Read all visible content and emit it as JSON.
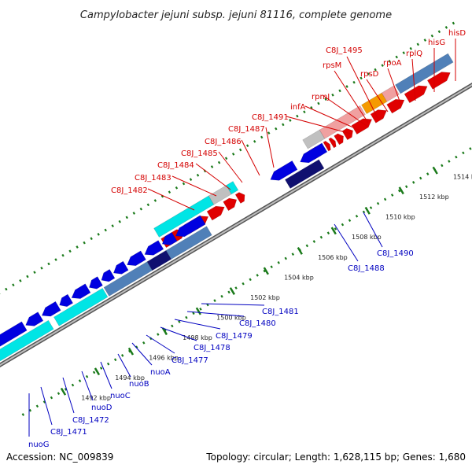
{
  "title": "Campylobacter jejuni subsp. jejuni 81116, complete genome",
  "footer": {
    "accession": "Accession: NC_009839",
    "summary": "Topology: circular; Length: 1,628,115 bp; Genes: 1,680"
  },
  "colors": {
    "forward_cds": "#e00000",
    "reverse_cds": "#0000e0",
    "forward_feature": "#00e5e5",
    "reverse_feature": "#5080b8",
    "pseudo_pale": "#f0a0a0",
    "grey_feature": "#c0c0c0",
    "orange_feature": "#f59a00",
    "dark_navy": "#101070",
    "tick_green": "#1a7a1a",
    "axis_grey": "#8c8c8c"
  },
  "ticks": [
    "1492 kbp",
    "1494 kbp",
    "1496 kbp",
    "1498 kbp",
    "1500 kbp",
    "1502 kbp",
    "1504 kbp",
    "1506 kbp",
    "1508 kbp",
    "1510 kbp",
    "1512 kbp",
    "1514 kbp"
  ],
  "forward_labels": [
    "C8J_1482",
    "C8J_1483",
    "C8J_1484",
    "C8J_1485",
    "C8J_1486",
    "C8J_1487",
    "C8J_1491",
    "infA",
    "rpmJ",
    "rpsM",
    "C8J_1495",
    "rpsD",
    "rpoA",
    "rplQ",
    "hisG",
    "hisD"
  ],
  "reverse_labels": [
    "nuoG",
    "C8J_1471",
    "C8J_1472",
    "nuoD",
    "nuoC",
    "nuoB",
    "nuoA",
    "C8J_1477",
    "C8J_1478",
    "C8J_1479",
    "C8J_1480",
    "C8J_1481",
    "C8J_1488",
    "C8J_1490"
  ]
}
